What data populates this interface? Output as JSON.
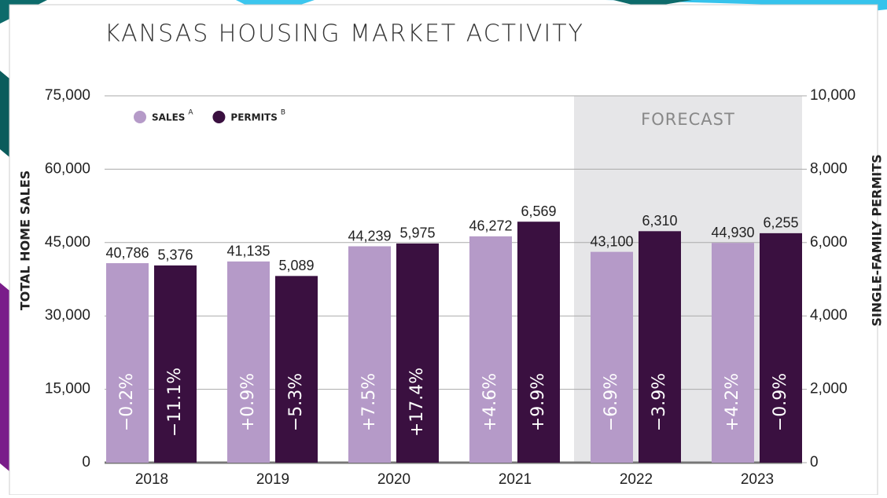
{
  "chart_data": {
    "type": "bar",
    "title": "KANSAS HOUSING MARKET ACTIVITY",
    "y_label": "TOTAL HOME SALES",
    "y2_label": "SINGLE-FAMILY PERMITS",
    "categories": [
      "2018",
      "2019",
      "2020",
      "2021",
      "2022",
      "2023"
    ],
    "series": [
      {
        "name": "SALES",
        "marker": "A",
        "color": "#b59ac8",
        "values": [
          40786,
          41135,
          44239,
          46272,
          43100,
          44930
        ],
        "value_labels": [
          "40,786",
          "41,135",
          "44,239",
          "46,272",
          "43,100",
          "44,930"
        ],
        "change_labels": [
          "−0.2%",
          "+0.9%",
          "+7.5%",
          "+4.6%",
          "−6.9%",
          "+4.2%"
        ]
      },
      {
        "name": "PERMITS",
        "marker": "B",
        "color": "#3a1040",
        "axis": "y2",
        "values": [
          5376,
          5089,
          5975,
          6569,
          6310,
          6255
        ],
        "value_labels": [
          "5,376",
          "5,089",
          "5,975",
          "6,569",
          "6,310",
          "6,255"
        ],
        "change_labels": [
          "−11.1%",
          "−5.3%",
          "+17.4%",
          "+9.9%",
          "−3.9%",
          "−0.9%"
        ]
      }
    ],
    "ylim": [
      0,
      75000
    ],
    "yticks": [
      0,
      {
        "value": 15000,
        "label": "15,000"
      },
      {
        "value": 30000,
        "label": "30,000"
      },
      {
        "value": 45000,
        "label": "45,000"
      },
      {
        "value": 60000,
        "label": "60,000"
      },
      {
        "value": 75000,
        "label": "75,000"
      }
    ],
    "y2lim": [
      0,
      10000
    ],
    "y2ticks": [
      0,
      {
        "value": 2000,
        "label": "2,000"
      },
      {
        "value": 4000,
        "label": "4,000"
      },
      {
        "value": 6000,
        "label": "6,000"
      },
      {
        "value": 8000,
        "label": "8,000"
      },
      {
        "value": 10000,
        "label": "10,000"
      }
    ],
    "grid": true,
    "legend": "top-left",
    "forecast": {
      "label": "FORECAST",
      "from": "2022"
    }
  }
}
